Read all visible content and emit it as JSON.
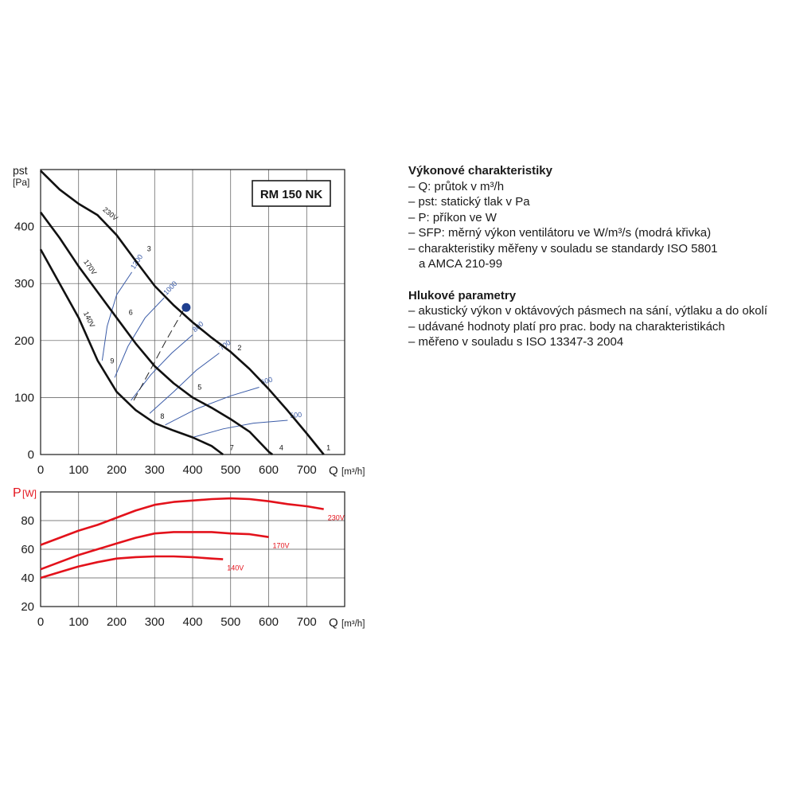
{
  "chart_data": [
    {
      "type": "line",
      "title": "RM 150 NK",
      "ylabel_lines": [
        "pst",
        "[Pa]"
      ],
      "xlabel": "Q",
      "xunit": "[m³/h]",
      "xlim": [
        0,
        800
      ],
      "ylim": [
        0,
        500
      ],
      "xticks": [
        0,
        100,
        200,
        300,
        400,
        500,
        600,
        700
      ],
      "yticks": [
        0,
        100,
        200,
        300,
        400
      ],
      "grid": true,
      "voltage_curves": [
        {
          "name": "230V",
          "label": "230V",
          "points": [
            [
              0,
              498
            ],
            [
              50,
              465
            ],
            [
              100,
              440
            ],
            [
              150,
              420
            ],
            [
              200,
              385
            ],
            [
              250,
              340
            ],
            [
              300,
              296
            ],
            [
              350,
              262
            ],
            [
              400,
              232
            ],
            [
              450,
              205
            ],
            [
              500,
              180
            ],
            [
              550,
              150
            ],
            [
              600,
              115
            ],
            [
              650,
              77
            ],
            [
              700,
              37
            ],
            [
              745,
              0
            ]
          ]
        },
        {
          "name": "170V",
          "label": "170V",
          "points": [
            [
              0,
              425
            ],
            [
              50,
              380
            ],
            [
              100,
              330
            ],
            [
              150,
              285
            ],
            [
              200,
              240
            ],
            [
              250,
              195
            ],
            [
              300,
              155
            ],
            [
              350,
              125
            ],
            [
              400,
              100
            ],
            [
              450,
              82
            ],
            [
              500,
              62
            ],
            [
              550,
              40
            ],
            [
              600,
              5
            ],
            [
              610,
              0
            ]
          ]
        },
        {
          "name": "140V",
          "label": "140V",
          "points": [
            [
              0,
              360
            ],
            [
              50,
              300
            ],
            [
              100,
              240
            ],
            [
              150,
              165
            ],
            [
              200,
              110
            ],
            [
              250,
              78
            ],
            [
              300,
              55
            ],
            [
              350,
              42
            ],
            [
              400,
              30
            ],
            [
              450,
              15
            ],
            [
              480,
              0
            ]
          ]
        }
      ],
      "sfp_curves": [
        {
          "label": "1200",
          "points": [
            [
              162,
              165
            ],
            [
              175,
              225
            ],
            [
              200,
              280
            ],
            [
              240,
              320
            ]
          ]
        },
        {
          "label": "1000",
          "points": [
            [
              195,
              135
            ],
            [
              230,
              190
            ],
            [
              275,
              240
            ],
            [
              325,
              275
            ]
          ]
        },
        {
          "label": "800",
          "points": [
            [
              238,
              95
            ],
            [
              290,
              140
            ],
            [
              345,
              178
            ],
            [
              400,
              210
            ]
          ]
        },
        {
          "label": "700",
          "points": [
            [
              287,
              72
            ],
            [
              350,
              110
            ],
            [
              410,
              148
            ],
            [
              470,
              178
            ]
          ]
        },
        {
          "label": "600",
          "points": [
            [
              328,
              52
            ],
            [
              410,
              80
            ],
            [
              500,
              103
            ],
            [
              575,
              118
            ]
          ]
        },
        {
          "label": "500",
          "points": [
            [
              400,
              30
            ],
            [
              480,
              45
            ],
            [
              560,
              55
            ],
            [
              650,
              60
            ]
          ]
        }
      ],
      "system_curve": {
        "style": "dashed",
        "points": [
          [
            245,
            95
          ],
          [
            290,
            150
          ],
          [
            330,
            200
          ],
          [
            380,
            258
          ]
        ]
      },
      "operating_point": {
        "x": 383,
        "y": 258
      },
      "point_labels": [
        {
          "label": "1",
          "x": 752,
          "y": 8
        },
        {
          "label": "2",
          "x": 518,
          "y": 183
        },
        {
          "label": "3",
          "x": 280,
          "y": 357
        },
        {
          "label": "4",
          "x": 628,
          "y": 8
        },
        {
          "label": "5",
          "x": 413,
          "y": 114
        },
        {
          "label": "6",
          "x": 232,
          "y": 245
        },
        {
          "label": "7",
          "x": 498,
          "y": 8
        },
        {
          "label": "8",
          "x": 315,
          "y": 63
        },
        {
          "label": "9",
          "x": 183,
          "y": 160
        }
      ],
      "colors": {
        "voltage_curves": "#111111",
        "sfp_curves": "#3b5ca8",
        "operating_point": "#1f3f8f"
      }
    },
    {
      "type": "line",
      "ylabel": "P",
      "yunit": "[W]",
      "xlabel": "Q",
      "xunit": "[m³/h]",
      "xlim": [
        0,
        800
      ],
      "ylim": [
        20,
        100
      ],
      "xticks": [
        0,
        100,
        200,
        300,
        400,
        500,
        600,
        700
      ],
      "yticks": [
        20,
        40,
        60,
        80
      ],
      "grid": true,
      "series": [
        {
          "name": "230V",
          "points": [
            [
              0,
              63
            ],
            [
              50,
              68
            ],
            [
              100,
              73
            ],
            [
              150,
              77
            ],
            [
              200,
              82
            ],
            [
              250,
              87
            ],
            [
              300,
              91
            ],
            [
              350,
              93
            ],
            [
              400,
              94
            ],
            [
              450,
              95
            ],
            [
              500,
              95.5
            ],
            [
              550,
              95
            ],
            [
              600,
              93.5
            ],
            [
              650,
              91.5
            ],
            [
              700,
              90
            ],
            [
              745,
              88
            ]
          ]
        },
        {
          "name": "170V",
          "points": [
            [
              0,
              46
            ],
            [
              50,
              51
            ],
            [
              100,
              56
            ],
            [
              150,
              60
            ],
            [
              200,
              64
            ],
            [
              250,
              68
            ],
            [
              300,
              71
            ],
            [
              350,
              72
            ],
            [
              400,
              72
            ],
            [
              450,
              72
            ],
            [
              500,
              71
            ],
            [
              550,
              70.5
            ],
            [
              600,
              68.5
            ]
          ]
        },
        {
          "name": "140V",
          "points": [
            [
              0,
              40
            ],
            [
              50,
              44
            ],
            [
              100,
              48
            ],
            [
              150,
              51
            ],
            [
              200,
              53.5
            ],
            [
              250,
              54.5
            ],
            [
              300,
              55
            ],
            [
              350,
              55
            ],
            [
              400,
              54.5
            ],
            [
              450,
              53.5
            ],
            [
              480,
              53
            ]
          ]
        }
      ],
      "colors": {
        "series": "#e3121b",
        "ylabel": "#e3121b"
      }
    }
  ],
  "notes": {
    "performance": {
      "heading": "Výkonové charakteristiky",
      "items": [
        "– Q: průtok v m³/h",
        "– pst: statický tlak v Pa",
        "– P: příkon ve W",
        "– SFP: měrný výkon ventilátoru ve W/m³/s (modrá křivka)",
        "– charakteristiky měřeny v souladu se standardy ISO 5801",
        "a AMCA 210-99"
      ]
    },
    "noise": {
      "heading": "Hlukové parametry",
      "items": [
        "– akustický výkon v oktávových pásmech na sání, výtlaku a do okolí",
        "– udávané hodnoty platí pro prac. body na charakteristikách",
        "– měřeno v souladu s ISO 13347-3 2004"
      ]
    }
  }
}
